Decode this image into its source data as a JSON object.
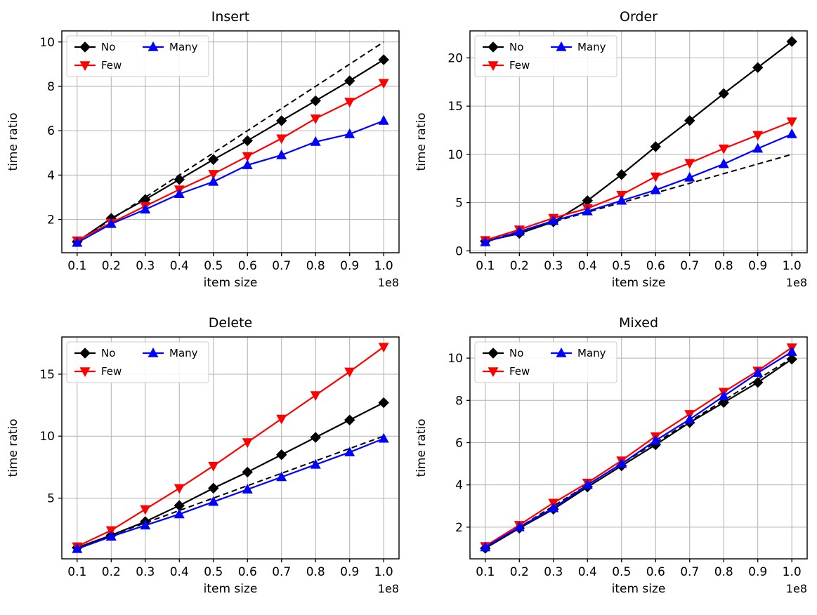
{
  "figure": {
    "background": "#ffffff",
    "grid_color": "#b0b0b0",
    "spine_color": "#000000"
  },
  "legend": {
    "labels": [
      "No",
      "Few",
      "Many"
    ],
    "position": "upper left",
    "columns": 2
  },
  "chart_data": [
    {
      "type": "line",
      "title": "Insert",
      "xlabel": "item size",
      "ylabel": "time ratio",
      "x_offset_text": "1e8",
      "x": [
        0.1,
        0.2,
        0.3,
        0.4,
        0.5,
        0.6,
        0.7,
        0.8,
        0.9,
        1.0
      ],
      "xlim": [
        0.055,
        1.045
      ],
      "ylim": [
        0.5,
        10.5
      ],
      "xticks": [
        0.1,
        0.2,
        0.3,
        0.4,
        0.5,
        0.6,
        0.7,
        0.8,
        0.9,
        1.0
      ],
      "yticks": [
        2,
        4,
        6,
        8,
        10
      ],
      "grid": true,
      "legend_position": "upper left",
      "series": [
        {
          "name": "No",
          "color": "#000000",
          "marker": "diamond",
          "values": [
            1.0,
            2.05,
            2.9,
            3.8,
            4.7,
            5.55,
            6.45,
            7.35,
            8.25,
            9.2
          ]
        },
        {
          "name": "Few",
          "color": "#ff0000",
          "marker": "triangle-down",
          "values": [
            1.05,
            1.85,
            2.6,
            3.35,
            4.05,
            4.85,
            5.65,
            6.55,
            7.3,
            8.15
          ]
        },
        {
          "name": "Many",
          "color": "#0000ff",
          "marker": "triangle-up",
          "values": [
            0.95,
            1.8,
            2.45,
            3.15,
            3.7,
            4.45,
            4.9,
            5.5,
            5.85,
            6.45
          ]
        }
      ],
      "reference_line": {
        "style": "dashed",
        "color": "#000000",
        "x": [
          0.1,
          1.0
        ],
        "y": [
          1,
          10
        ]
      }
    },
    {
      "type": "line",
      "title": "Order",
      "xlabel": "item size",
      "ylabel": "time ratio",
      "x_offset_text": "1e8",
      "x": [
        0.1,
        0.2,
        0.3,
        0.4,
        0.5,
        0.6,
        0.7,
        0.8,
        0.9,
        1.0
      ],
      "xlim": [
        0.055,
        1.045
      ],
      "ylim": [
        -0.2,
        22.8
      ],
      "xticks": [
        0.1,
        0.2,
        0.3,
        0.4,
        0.5,
        0.6,
        0.7,
        0.8,
        0.9,
        1.0
      ],
      "yticks": [
        0,
        5,
        10,
        15,
        20
      ],
      "grid": true,
      "legend_position": "upper left",
      "series": [
        {
          "name": "No",
          "color": "#000000",
          "marker": "diamond",
          "values": [
            1.0,
            1.8,
            3.0,
            5.2,
            7.9,
            10.8,
            13.5,
            16.3,
            19.0,
            21.7
          ]
        },
        {
          "name": "Few",
          "color": "#ff0000",
          "marker": "triangle-down",
          "values": [
            1.1,
            2.2,
            3.4,
            4.4,
            5.8,
            7.7,
            9.1,
            10.6,
            12.0,
            13.4
          ]
        },
        {
          "name": "Many",
          "color": "#0000ff",
          "marker": "triangle-up",
          "values": [
            0.9,
            2.0,
            3.1,
            4.1,
            5.2,
            6.3,
            7.6,
            9.0,
            10.6,
            12.1
          ]
        }
      ],
      "reference_line": {
        "style": "dashed",
        "color": "#000000",
        "x": [
          0.1,
          1.0
        ],
        "y": [
          1,
          10
        ]
      }
    },
    {
      "type": "line",
      "title": "Delete",
      "xlabel": "item size",
      "ylabel": "time ratio",
      "x_offset_text": "1e8",
      "x": [
        0.1,
        0.2,
        0.3,
        0.4,
        0.5,
        0.6,
        0.7,
        0.8,
        0.9,
        1.0
      ],
      "xlim": [
        0.055,
        1.045
      ],
      "ylim": [
        0.1,
        18.0
      ],
      "xticks": [
        0.1,
        0.2,
        0.3,
        0.4,
        0.5,
        0.6,
        0.7,
        0.8,
        0.9,
        1.0
      ],
      "yticks": [
        5,
        10,
        15
      ],
      "grid": true,
      "legend_position": "upper left",
      "series": [
        {
          "name": "No",
          "color": "#000000",
          "marker": "diamond",
          "values": [
            1.0,
            2.0,
            3.1,
            4.4,
            5.8,
            7.1,
            8.5,
            9.9,
            11.3,
            12.7
          ]
        },
        {
          "name": "Few",
          "color": "#ff0000",
          "marker": "triangle-down",
          "values": [
            1.1,
            2.4,
            4.1,
            5.8,
            7.6,
            9.5,
            11.4,
            13.3,
            15.2,
            17.2
          ]
        },
        {
          "name": "Many",
          "color": "#0000ff",
          "marker": "triangle-up",
          "values": [
            0.9,
            1.9,
            2.8,
            3.7,
            4.7,
            5.7,
            6.7,
            7.7,
            8.7,
            9.8
          ]
        }
      ],
      "reference_line": {
        "style": "dashed",
        "color": "#000000",
        "x": [
          0.1,
          1.0
        ],
        "y": [
          1,
          10
        ]
      }
    },
    {
      "type": "line",
      "title": "Mixed",
      "xlabel": "item size",
      "ylabel": "time ratio",
      "x_offset_text": "1e8",
      "x": [
        0.1,
        0.2,
        0.3,
        0.4,
        0.5,
        0.6,
        0.7,
        0.8,
        0.9,
        1.0
      ],
      "xlim": [
        0.055,
        1.045
      ],
      "ylim": [
        0.5,
        11.0
      ],
      "xticks": [
        0.1,
        0.2,
        0.3,
        0.4,
        0.5,
        0.6,
        0.7,
        0.8,
        0.9,
        1.0
      ],
      "yticks": [
        2,
        4,
        6,
        8,
        10
      ],
      "grid": true,
      "legend_position": "upper left",
      "series": [
        {
          "name": "No",
          "color": "#000000",
          "marker": "diamond",
          "values": [
            1.0,
            1.95,
            2.85,
            3.9,
            4.9,
            5.9,
            6.95,
            7.9,
            8.85,
            9.95
          ]
        },
        {
          "name": "Few",
          "color": "#ff0000",
          "marker": "triangle-down",
          "values": [
            1.1,
            2.1,
            3.15,
            4.1,
            5.15,
            6.3,
            7.35,
            8.4,
            9.4,
            10.5
          ]
        },
        {
          "name": "Many",
          "color": "#0000ff",
          "marker": "triangle-up",
          "values": [
            1.05,
            2.0,
            2.9,
            4.0,
            5.0,
            6.1,
            7.1,
            8.2,
            9.3,
            10.3
          ]
        }
      ],
      "reference_line": {
        "style": "dashed",
        "color": "#000000",
        "x": [
          0.1,
          1.0
        ],
        "y": [
          1,
          10
        ]
      }
    }
  ]
}
